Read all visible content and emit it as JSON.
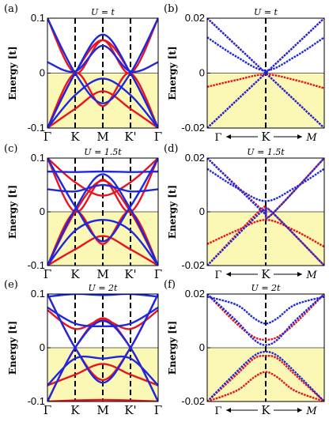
{
  "figure": {
    "ylabel": "Energy [t]",
    "colors": {
      "red": "#e8141e",
      "blue": "#1e28dc",
      "fill": "#fbf7b4",
      "kline": "#000000"
    }
  },
  "chart_data": [
    {
      "panel": "(a)",
      "title": "U = t",
      "type": "line",
      "xticks": [
        "Γ",
        "K",
        "M",
        "K'",
        "Γ"
      ],
      "ylim": [
        -0.1,
        0.1
      ],
      "yticks": [
        "0.1",
        "0",
        "-0.1"
      ],
      "fill_below": 0,
      "series": [
        {
          "color": "red",
          "x": [
            0,
            1,
            2,
            3,
            4
          ],
          "values": [
            -0.1,
            0,
            0.06,
            0,
            -0.1
          ]
        },
        {
          "color": "red",
          "x": [
            0,
            1,
            2,
            3,
            4
          ],
          "values": [
            -0.1,
            0,
            -0.06,
            0,
            -0.1
          ]
        },
        {
          "color": "red",
          "x": [
            0,
            1,
            2,
            3,
            4
          ],
          "values": [
            0.1,
            0,
            0.06,
            0,
            0.1
          ]
        },
        {
          "color": "red",
          "x": [
            0,
            1,
            2,
            3,
            4
          ],
          "values": [
            -0.1,
            -0.065,
            -0.033,
            -0.065,
            -0.1
          ]
        },
        {
          "color": "blue",
          "x": [
            0,
            1,
            2,
            3,
            4
          ],
          "values": [
            -0.1,
            0,
            0.07,
            0,
            -0.1
          ]
        },
        {
          "color": "blue",
          "x": [
            0,
            1,
            2,
            3,
            4
          ],
          "values": [
            0.1,
            0,
            -0.055,
            0,
            0.1
          ]
        },
        {
          "color": "blue",
          "x": [
            0,
            1,
            2,
            3,
            4
          ],
          "values": [
            0.02,
            0.003,
            0.05,
            0.003,
            0.02
          ]
        },
        {
          "color": "blue",
          "x": [
            0,
            1,
            2,
            3,
            4
          ],
          "values": [
            -0.1,
            -0.04,
            -0.01,
            -0.04,
            -0.1
          ]
        }
      ]
    },
    {
      "panel": "(b)",
      "title": "U = t",
      "type": "line",
      "xlabels": [
        "Γ",
        "K",
        "M"
      ],
      "ylim": [
        -0.02,
        0.02
      ],
      "yticks": [
        "0.02",
        "0",
        "-0.02"
      ],
      "fill_below": 0,
      "series": [
        {
          "color": "red",
          "x": [
            -1,
            -0.5,
            0,
            0.5,
            1
          ],
          "values": [
            -0.005,
            -0.0025,
            -0.0005,
            -0.0025,
            -0.0055
          ]
        },
        {
          "color": "blue",
          "x": [
            -1,
            -0.5,
            0,
            0.5,
            1
          ],
          "values": [
            0.013,
            0.006,
            0.001,
            0.006,
            0.013
          ]
        },
        {
          "color": "red",
          "x": [
            -1,
            0,
            1
          ],
          "values": [
            -0.02,
            0,
            0.02
          ]
        },
        {
          "color": "red",
          "x": [
            -1,
            0,
            1
          ],
          "values": [
            0.02,
            0,
            -0.02
          ]
        },
        {
          "color": "blue",
          "x": [
            -1,
            0,
            1
          ],
          "values": [
            -0.02,
            0,
            0.02
          ]
        },
        {
          "color": "blue",
          "x": [
            -1,
            0,
            1
          ],
          "values": [
            0.02,
            0,
            -0.02
          ]
        }
      ]
    },
    {
      "panel": "(c)",
      "title": "U = 1.5t",
      "type": "line",
      "xticks": [
        "Γ",
        "K",
        "M",
        "K'",
        "Γ"
      ],
      "ylim": [
        -0.1,
        0.1
      ],
      "yticks": [
        "0.1",
        "0",
        "-0.1"
      ],
      "fill_below": 0,
      "series": [
        {
          "color": "red",
          "x": [
            0,
            1,
            2,
            3,
            4
          ],
          "values": [
            -0.1,
            0,
            0.058,
            0,
            -0.1
          ]
        },
        {
          "color": "red",
          "x": [
            0,
            1,
            2,
            3,
            4
          ],
          "values": [
            -0.1,
            0,
            -0.06,
            0,
            -0.1
          ]
        },
        {
          "color": "red",
          "x": [
            0,
            1,
            2,
            3,
            4
          ],
          "values": [
            0.1,
            0,
            0.06,
            0,
            0.1
          ]
        },
        {
          "color": "red",
          "x": [
            0,
            1,
            2,
            3,
            4
          ],
          "values": [
            -0.1,
            -0.07,
            -0.045,
            -0.07,
            -0.1
          ]
        },
        {
          "color": "red",
          "x": [
            0,
            1,
            2,
            3,
            4
          ],
          "values": [
            0.1,
            0.055,
            0.03,
            0.055,
            0.1
          ]
        },
        {
          "color": "blue",
          "x": [
            0,
            1,
            2,
            3,
            4
          ],
          "values": [
            0.1,
            0.01,
            -0.055,
            0.01,
            0.1
          ]
        },
        {
          "color": "blue",
          "x": [
            0,
            1,
            2,
            3,
            4
          ],
          "values": [
            -0.1,
            0.005,
            0.07,
            0.005,
            -0.1
          ]
        },
        {
          "color": "blue",
          "x": [
            0,
            1,
            2,
            3,
            4
          ],
          "values": [
            0.042,
            0.038,
            0.05,
            0.038,
            0.042
          ]
        },
        {
          "color": "blue",
          "x": [
            0,
            1,
            2,
            3,
            4
          ],
          "values": [
            0.075,
            0.074,
            0.075,
            0.074,
            0.075
          ]
        },
        {
          "color": "blue",
          "x": [
            0,
            1,
            2,
            3,
            4
          ],
          "values": [
            -0.1,
            -0.035,
            -0.015,
            -0.035,
            -0.1
          ]
        }
      ]
    },
    {
      "panel": "(d)",
      "title": "U = 1.5t",
      "type": "line",
      "xlabels": [
        "Γ",
        "K",
        "M"
      ],
      "ylim": [
        -0.02,
        0.02
      ],
      "yticks": [
        "0.02",
        "0",
        "-0.02"
      ],
      "fill_below": 0,
      "series": [
        {
          "color": "red",
          "x": [
            -1,
            -0.5,
            0,
            0.5,
            1
          ],
          "values": [
            -0.012,
            -0.007,
            -0.003,
            -0.007,
            -0.013
          ]
        },
        {
          "color": "blue",
          "x": [
            -1,
            -0.5,
            0,
            0.5,
            1
          ],
          "values": [
            0.016,
            0.009,
            0.004,
            0.009,
            0.016
          ]
        },
        {
          "color": "red",
          "x": [
            -1,
            -0.1,
            0,
            0.1,
            1
          ],
          "values": [
            -0.02,
            0.0005,
            0.0005,
            -0.001,
            0.02
          ]
        },
        {
          "color": "red",
          "x": [
            -1,
            -0.1,
            0,
            0.1,
            1
          ],
          "values": [
            0.02,
            0.0015,
            0.0005,
            0.0,
            -0.02
          ]
        },
        {
          "color": "blue",
          "x": [
            -1,
            -0.1,
            0,
            0.1,
            1
          ],
          "values": [
            -0.02,
            -0.0005,
            -0.0005,
            -0.001,
            0.02
          ]
        },
        {
          "color": "blue",
          "x": [
            -1,
            -0.1,
            0,
            0.1,
            1
          ],
          "values": [
            0.02,
            0.001,
            -0.0005,
            0.0,
            -0.02
          ]
        }
      ]
    },
    {
      "panel": "(e)",
      "title": "U = 2t",
      "type": "line",
      "xticks": [
        "Γ",
        "K",
        "M",
        "K'",
        "Γ"
      ],
      "ylim": [
        -0.1,
        0.1
      ],
      "yticks": [
        "0.1",
        "0",
        "-0.1"
      ],
      "fill_below": 0,
      "series": [
        {
          "color": "red",
          "x": [
            0,
            1,
            2,
            3,
            4
          ],
          "values": [
            -0.1,
            0,
            0.055,
            0,
            -0.1
          ]
        },
        {
          "color": "red",
          "x": [
            0,
            1,
            2,
            3,
            4
          ],
          "values": [
            0.1,
            0,
            -0.06,
            0,
            0.1
          ]
        },
        {
          "color": "red",
          "x": [
            0,
            1,
            2,
            3,
            4
          ],
          "values": [
            0.07,
            0.035,
            0.052,
            0.035,
            0.07
          ]
        },
        {
          "color": "red",
          "x": [
            0,
            1,
            2,
            3,
            4
          ],
          "values": [
            -0.07,
            -0.05,
            -0.03,
            -0.05,
            -0.07
          ]
        },
        {
          "color": "red",
          "x": [
            0,
            1,
            2,
            3,
            4
          ],
          "values": [
            -0.1,
            -0.098,
            -0.097,
            -0.098,
            -0.1
          ]
        },
        {
          "color": "blue",
          "x": [
            0,
            1,
            2,
            3,
            4
          ],
          "values": [
            -0.1,
            0,
            0.05,
            0,
            -0.1
          ]
        },
        {
          "color": "blue",
          "x": [
            0,
            1,
            2,
            3,
            4
          ],
          "values": [
            0.1,
            0,
            -0.065,
            0,
            0.1
          ]
        },
        {
          "color": "blue",
          "x": [
            0,
            1,
            2,
            3,
            4
          ],
          "values": [
            0.075,
            0.045,
            0.04,
            0.045,
            0.075
          ]
        },
        {
          "color": "blue",
          "x": [
            0,
            1,
            2,
            3,
            4
          ],
          "values": [
            0.095,
            0.1,
            0.098,
            0.1,
            0.095
          ]
        },
        {
          "color": "blue",
          "x": [
            0,
            1,
            2,
            3,
            4
          ],
          "values": [
            -0.07,
            -0.02,
            -0.02,
            -0.02,
            -0.07
          ]
        }
      ]
    },
    {
      "panel": "(f)",
      "title": "U = 2t",
      "type": "line",
      "xlabels": [
        "Γ",
        "K",
        "M"
      ],
      "ylim": [
        -0.02,
        0.02
      ],
      "yticks": [
        "0.02",
        "0",
        "-0.02"
      ],
      "fill_below": 0,
      "series": [
        {
          "color": "red",
          "x": [
            -1,
            -0.5,
            -0.2,
            0,
            0.2,
            0.5,
            1
          ],
          "values": [
            0.02,
            0.009,
            0.004,
            0.003,
            0.004,
            0.009,
            0.02
          ]
        },
        {
          "color": "blue",
          "x": [
            -1,
            -0.5,
            -0.2,
            0,
            0.2,
            0.5,
            1
          ],
          "values": [
            0.019,
            0.016,
            0.011,
            0.009,
            0.011,
            0.016,
            0.019
          ]
        },
        {
          "color": "blue",
          "x": [
            -1,
            -0.5,
            -0.2,
            0,
            0.2,
            0.5,
            1
          ],
          "values": [
            0.02,
            0.01,
            0.003,
            0.001,
            0.003,
            0.01,
            0.02
          ]
        },
        {
          "color": "red",
          "x": [
            -1,
            -0.5,
            -0.2,
            0,
            0.2,
            0.5,
            1
          ],
          "values": [
            -0.02,
            -0.01,
            -0.004,
            -0.003,
            -0.004,
            -0.01,
            -0.02
          ]
        },
        {
          "color": "blue",
          "x": [
            -1,
            -0.5,
            -0.2,
            0,
            0.2,
            0.5,
            1
          ],
          "values": [
            -0.02,
            -0.009,
            -0.003,
            -0.0015,
            -0.003,
            -0.009,
            -0.02
          ]
        },
        {
          "color": "red",
          "x": [
            -1,
            -0.5,
            -0.2,
            0,
            0.2,
            0.5,
            1
          ],
          "values": [
            -0.02,
            -0.016,
            -0.011,
            -0.009,
            -0.011,
            -0.016,
            -0.02
          ]
        }
      ]
    }
  ]
}
